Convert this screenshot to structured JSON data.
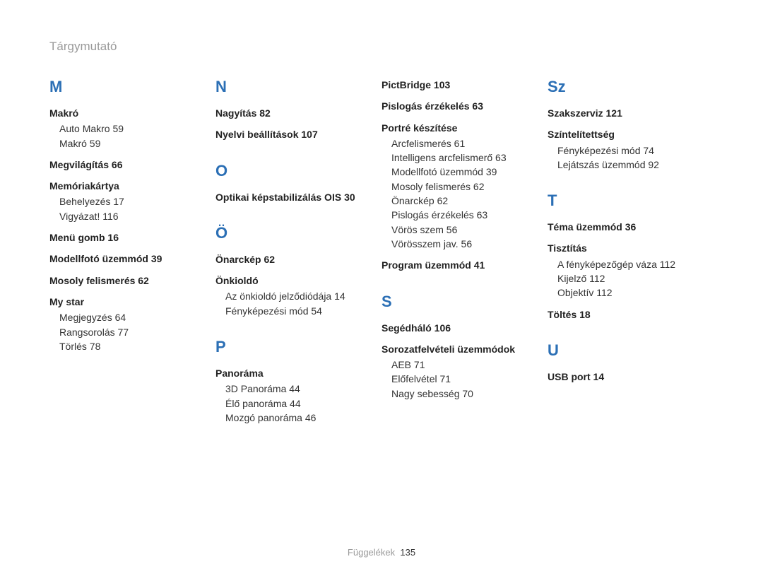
{
  "header": "Tárgymutató",
  "footer": {
    "label": "Függelékek",
    "page": "135"
  },
  "columns": [
    {
      "sections": [
        {
          "letter": "M",
          "entries": [
            {
              "head": "Makró",
              "subs": [
                "Auto Makro  59",
                "Makró  59"
              ]
            },
            {
              "head": "Megvilágítás  66"
            },
            {
              "head": "Memóriakártya",
              "subs": [
                "Behelyezés  17",
                "Vigyázat!  116"
              ]
            },
            {
              "head": "Menü gomb  16"
            },
            {
              "head": "Modellfotó üzemmód  39"
            },
            {
              "head": "Mosoly felismerés  62"
            },
            {
              "head": "My star",
              "subs": [
                "Megjegyzés  64",
                "Rangsorolás  77",
                "Törlés  78"
              ]
            }
          ]
        }
      ]
    },
    {
      "sections": [
        {
          "letter": "N",
          "entries": [
            {
              "head": "Nagyítás  82"
            },
            {
              "head": "Nyelvi beállítások  107"
            }
          ]
        },
        {
          "letter": "O",
          "gap": true,
          "entries": [
            {
              "head": "Optikai képstabilizálás OIS  30"
            }
          ]
        },
        {
          "letter": "Ö",
          "gap": true,
          "entries": [
            {
              "head": "Önarckép  62"
            },
            {
              "head": "Önkioldó",
              "subs": [
                "Az önkioldó jelződiódája  14",
                "Fényképezési mód  54"
              ]
            }
          ]
        },
        {
          "letter": "P",
          "gap": true,
          "entries": [
            {
              "head": "Panoráma",
              "subs": [
                "3D Panoráma  44",
                "Élő panoráma  44",
                "Mozgó panoráma  46"
              ]
            }
          ]
        }
      ]
    },
    {
      "sections": [
        {
          "letter": "",
          "entries": [
            {
              "head": "PictBridge  103"
            },
            {
              "head": "Pislogás érzékelés  63"
            },
            {
              "head": "Portré készítése",
              "subs": [
                "Arcfelismerés  61",
                "Intelligens arcfelismerő  63",
                "Modellfotó üzemmód  39",
                "Mosoly felismerés  62",
                "Önarckép  62",
                "Pislogás érzékelés  63",
                "Vörös szem  56",
                "Vörösszem jav.  56"
              ]
            },
            {
              "head": "Program üzemmód  41"
            }
          ]
        },
        {
          "letter": "S",
          "gap": true,
          "entries": [
            {
              "head": "Segédháló  106"
            },
            {
              "head": "Sorozatfelvételi üzemmódok",
              "subs": [
                "AEB  71",
                "Előfelvétel  71",
                "Nagy sebesség  70"
              ]
            }
          ]
        }
      ]
    },
    {
      "sections": [
        {
          "letter": "Sz",
          "entries": [
            {
              "head": "Szakszerviz  121"
            },
            {
              "head": "Színtelítettség",
              "subs": [
                "Fényképezési mód  74",
                "Lejátszás üzemmód  92"
              ]
            }
          ]
        },
        {
          "letter": "T",
          "gap": true,
          "entries": [
            {
              "head": "Téma üzemmód  36"
            },
            {
              "head": "Tisztítás",
              "subs": [
                "A fényképezőgép váza  112",
                "Kijelző  112",
                "Objektív  112"
              ]
            },
            {
              "head": "Töltés  18"
            }
          ]
        },
        {
          "letter": "U",
          "gap": true,
          "entries": [
            {
              "head": "USB port  14"
            }
          ]
        }
      ]
    }
  ]
}
